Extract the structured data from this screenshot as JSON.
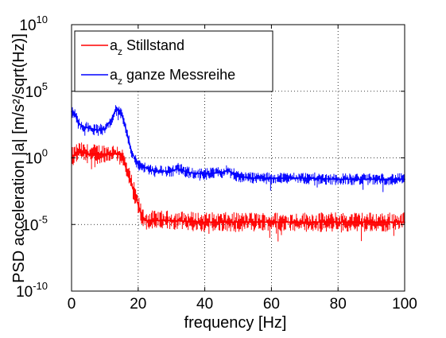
{
  "chart_data": {
    "type": "line",
    "title": "",
    "xlabel": "frequency [Hz]",
    "ylabel": "PSD acceleration |a| [m/s²/sqrt(Hz)]",
    "xlim": [
      0,
      100
    ],
    "ylim": [
      1e-10,
      10000000000.0
    ],
    "y_scale": "log",
    "grid": true,
    "legend_position": "top-left",
    "x_ticks": [
      "0",
      "20",
      "40",
      "60",
      "80",
      "100"
    ],
    "y_ticks": [
      {
        "base": "10",
        "exp": "-10"
      },
      {
        "base": "10",
        "exp": "-5"
      },
      {
        "base": "10",
        "exp": "0"
      },
      {
        "base": "10",
        "exp": "5"
      },
      {
        "base": "10",
        "exp": "10"
      }
    ],
    "series": [
      {
        "name": "a_z Stillstand",
        "legend": {
          "main": "a",
          "sub": "z",
          "rest": " Stillstand"
        },
        "color": "#ff0000",
        "x": [
          0,
          2,
          5,
          8,
          10,
          12,
          14,
          15,
          16,
          18,
          20,
          21,
          22,
          25,
          30,
          40,
          50,
          60,
          70,
          80,
          90,
          100
        ],
        "y": [
          1.0,
          3.0,
          2.0,
          2.0,
          2.0,
          2.0,
          2.0,
          1.5,
          0.3,
          0.01,
          0.0003,
          5e-05,
          2e-05,
          2e-05,
          2e-05,
          1.5e-05,
          1.5e-05,
          1.5e-05,
          1.5e-05,
          1.5e-05,
          1.5e-05,
          1.5e-05
        ]
      },
      {
        "name": "a_z ganze Messreihe",
        "legend": {
          "main": "a",
          "sub": "z",
          "rest": " ganze Messreihe"
        },
        "color": "#0000ff",
        "x": [
          0,
          1,
          2,
          4,
          6,
          8,
          10,
          12,
          13,
          14,
          15,
          16,
          17,
          18,
          20,
          25,
          30,
          32,
          35,
          40,
          45,
          47,
          50,
          55,
          60,
          70,
          80,
          90,
          100
        ],
        "y": [
          3000,
          2000,
          400,
          200,
          150,
          120,
          150,
          800,
          3000,
          4000,
          2000,
          300,
          30,
          3,
          0.3,
          0.1,
          0.1,
          0.15,
          0.08,
          0.06,
          0.08,
          0.12,
          0.04,
          0.03,
          0.03,
          0.03,
          0.025,
          0.025,
          0.025
        ]
      }
    ]
  }
}
